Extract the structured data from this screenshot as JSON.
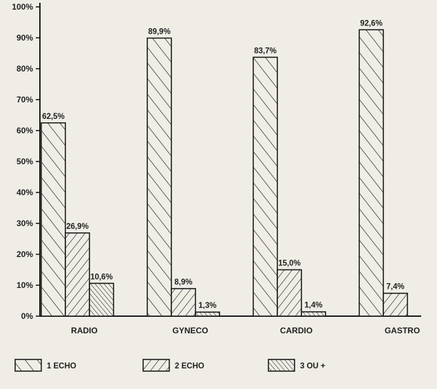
{
  "chart_data": {
    "type": "bar",
    "categories": [
      "RADIO",
      "GYNECO",
      "CARDIO",
      "GASTRO"
    ],
    "series": [
      {
        "name": "1 ECHO",
        "values": [
          62.5,
          89.9,
          83.7,
          92.6
        ],
        "labels": [
          "62,5%",
          "89,9%",
          "83,7%",
          "92,6%"
        ]
      },
      {
        "name": "2 ECHO",
        "values": [
          26.9,
          8.9,
          15.0,
          7.4
        ],
        "labels": [
          "26,9%",
          "8,9%",
          "15,0%",
          "7,4%"
        ]
      },
      {
        "name": "3 OU +",
        "values": [
          10.6,
          1.3,
          1.4,
          0
        ],
        "labels": [
          "10,6%",
          "1,3%",
          "1,4%",
          ""
        ]
      }
    ],
    "yticks": [
      "0%",
      "10%",
      "20%",
      "30%",
      "40%",
      "50%",
      "60%",
      "70%",
      "80%",
      "90%",
      "100%"
    ],
    "ylim": [
      0,
      100
    ],
    "grid": false,
    "legend_position": "bottom",
    "colors": {
      "ink": "#1b1b1b",
      "paper": "#efede6"
    }
  }
}
